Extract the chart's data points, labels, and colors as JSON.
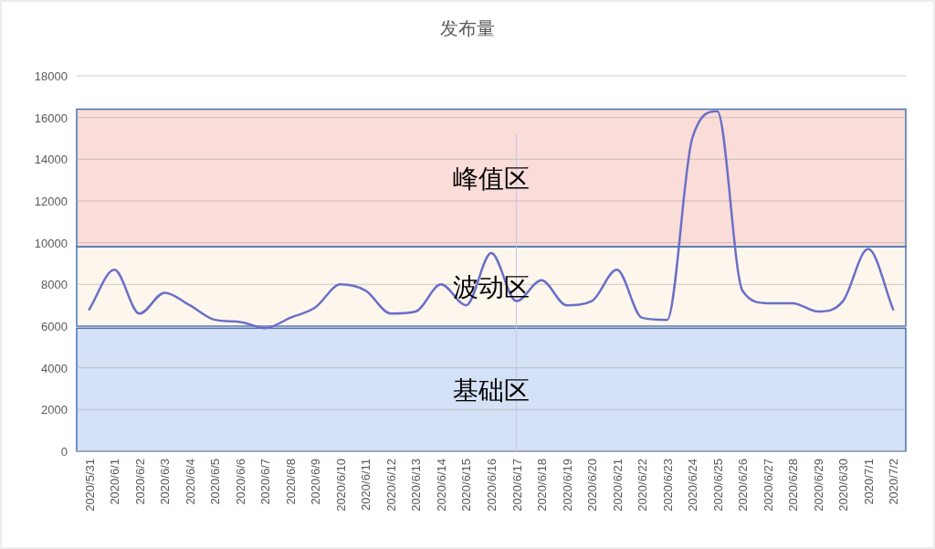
{
  "chart_data": {
    "type": "line",
    "title": "发布量",
    "categories": [
      "2020/5/31",
      "2020/6/1",
      "2020/6/2",
      "2020/6/3",
      "2020/6/4",
      "2020/6/5",
      "2020/6/6",
      "2020/6/7",
      "2020/6/8",
      "2020/6/9",
      "2020/6/10",
      "2020/6/11",
      "2020/6/12",
      "2020/6/13",
      "2020/6/14",
      "2020/6/15",
      "2020/6/16",
      "2020/6/17",
      "2020/6/18",
      "2020/6/19",
      "2020/6/20",
      "2020/6/21",
      "2020/6/22",
      "2020/6/23",
      "2020/6/24",
      "2020/6/25",
      "2020/6/26",
      "2020/6/27",
      "2020/6/28",
      "2020/6/29",
      "2020/6/30",
      "2020/7/1",
      "2020/7/2"
    ],
    "series": [
      {
        "color": "#6b6fc8",
        "values": [
          6800,
          8700,
          6600,
          7600,
          7000,
          6300,
          6200,
          5900,
          6400,
          6900,
          8000,
          7700,
          6600,
          6700,
          8000,
          7000,
          9500,
          7200,
          8200,
          7000,
          7200,
          8700,
          6400,
          6300,
          15000,
          16300,
          7700,
          7100,
          7100,
          6700,
          7200,
          9700,
          6800
        ]
      }
    ],
    "ylim": [
      0,
      18000
    ],
    "yticks": [
      0,
      2000,
      4000,
      6000,
      8000,
      10000,
      12000,
      14000,
      16000,
      18000
    ],
    "grid": "y",
    "marker": "none",
    "line_style": "solid",
    "bands": [
      {
        "axis": "y",
        "from": 9800,
        "to": 16400,
        "label": "峰值区",
        "color": "#f9d7d1"
      },
      {
        "axis": "y",
        "from": 6000,
        "to": 9800,
        "label": "波动区",
        "color": "#fdf5ea"
      },
      {
        "axis": "y",
        "from": 0,
        "to": 5900,
        "label": "基础区",
        "color": "#cddcf5"
      }
    ],
    "ref_lines": [
      {
        "axis": "x",
        "value": "2020/6/17",
        "color": "#c8c4ea",
        "line_style": "solid"
      }
    ]
  }
}
